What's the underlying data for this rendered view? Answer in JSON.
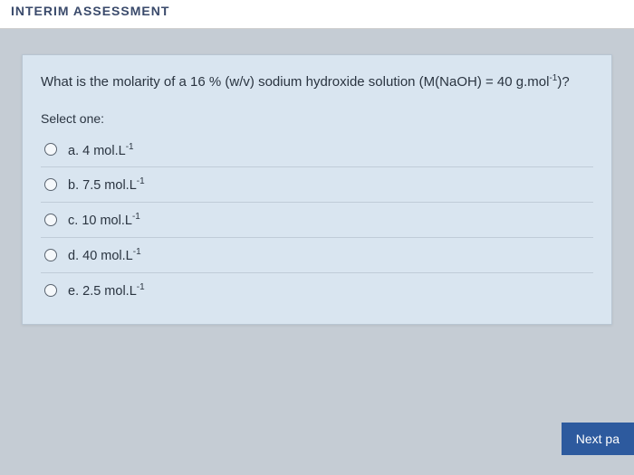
{
  "header": {
    "title_fragment": "INTERIM ASSESSMENT"
  },
  "question": {
    "text_pre": "What is the molarity of a 16 % (w/v) sodium hydroxide solution (M(NaOH) = 40 g.mol",
    "text_sup1": "-1",
    "text_post": ")?"
  },
  "select_label": "Select one:",
  "options": [
    {
      "letter": "a.",
      "value": "4 mol.L",
      "exp": "-1"
    },
    {
      "letter": "b.",
      "value": "7.5 mol.L",
      "exp": "-1"
    },
    {
      "letter": "c.",
      "value": "10 mol.L",
      "exp": "-1"
    },
    {
      "letter": "d.",
      "value": "40 mol.L",
      "exp": "-1"
    },
    {
      "letter": "e.",
      "value": "2.5 mol.L",
      "exp": "-1"
    }
  ],
  "nav": {
    "next_label": "Next pa"
  },
  "colors": {
    "page_bg": "#c5ccd4",
    "card_bg": "#d9e5f0",
    "button_bg": "#2d5a9e",
    "text": "#2a3440"
  }
}
